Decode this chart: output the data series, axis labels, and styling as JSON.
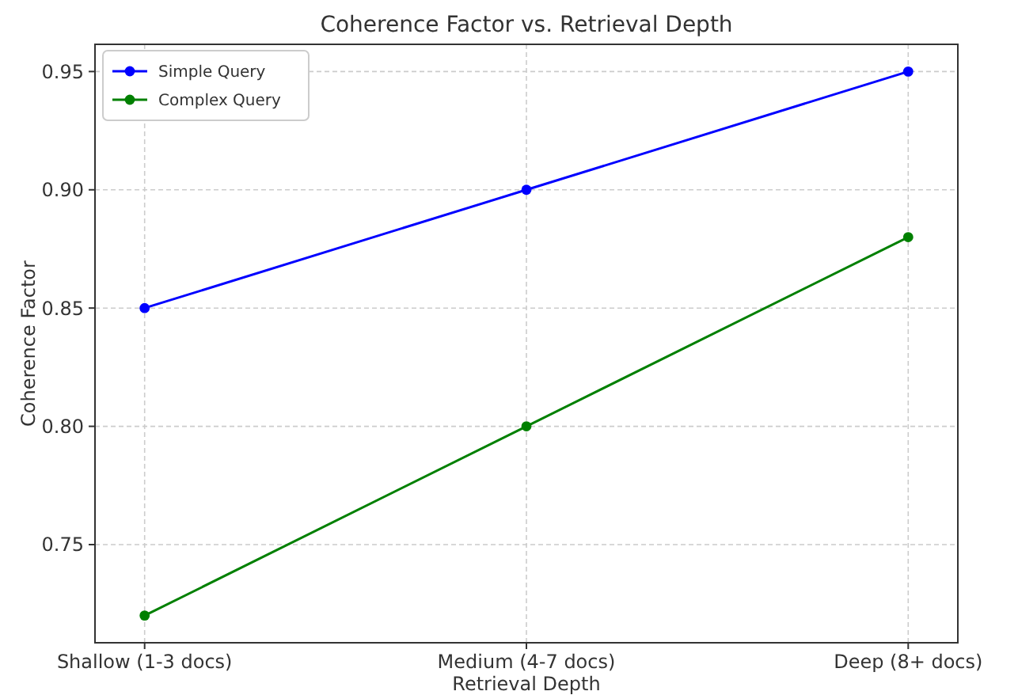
{
  "chart_data": {
    "type": "line",
    "title": "Coherence Factor vs. Retrieval Depth",
    "xlabel": "Retrieval Depth",
    "ylabel": "Coherence Factor",
    "categories": [
      "Shallow (1-3 docs)",
      "Medium (4-7 docs)",
      "Deep (8+ docs)"
    ],
    "series": [
      {
        "name": "Simple Query",
        "color": "#0000ff",
        "values": [
          0.85,
          0.9,
          0.95
        ]
      },
      {
        "name": "Complex Query",
        "color": "#008000",
        "values": [
          0.72,
          0.8,
          0.88
        ]
      }
    ],
    "ylim": [
      0.7085,
      0.9615
    ],
    "yticks": [
      {
        "value": 0.75,
        "label": "0.75"
      },
      {
        "value": 0.8,
        "label": "0.80"
      },
      {
        "value": 0.85,
        "label": "0.85"
      },
      {
        "value": 0.9,
        "label": "0.90"
      },
      {
        "value": 0.95,
        "label": "0.95"
      }
    ],
    "grid": true,
    "legend": "top left",
    "marker": "circle",
    "line_style": "solid"
  }
}
